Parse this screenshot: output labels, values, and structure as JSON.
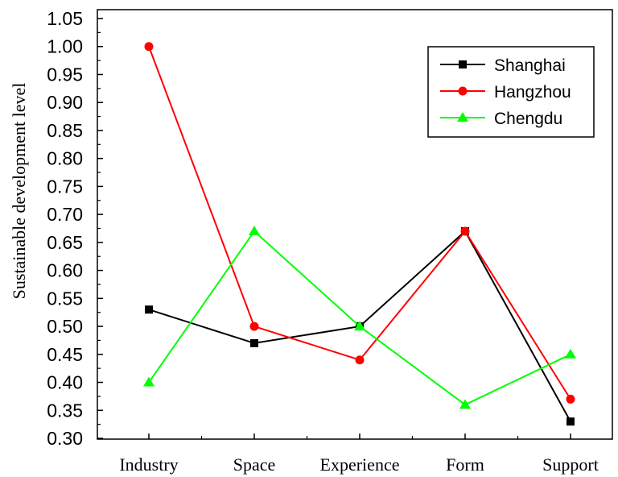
{
  "chart_data": {
    "type": "line",
    "title": "",
    "xlabel": "",
    "ylabel": "Sustainable development level",
    "categories": [
      "Industry",
      "Space",
      "Experience",
      "Form",
      "Support"
    ],
    "ylim": [
      0.3,
      1.05
    ],
    "yticks": [
      "0.30",
      "0.35",
      "0.40",
      "0.45",
      "0.50",
      "0.55",
      "0.60",
      "0.65",
      "0.70",
      "0.75",
      "0.80",
      "0.85",
      "0.90",
      "0.95",
      "1.00",
      "1.05"
    ],
    "grid": false,
    "legend_position": "top-right",
    "series": [
      {
        "name": "Shanghai",
        "values": [
          0.53,
          0.47,
          0.5,
          0.67,
          0.33
        ],
        "color": "#000000",
        "marker": "square"
      },
      {
        "name": "Hangzhou",
        "values": [
          1.0,
          0.5,
          0.44,
          0.67,
          0.37
        ],
        "color": "#ff0000",
        "marker": "circle"
      },
      {
        "name": "Chengdu",
        "values": [
          0.4,
          0.67,
          0.5,
          0.36,
          0.45
        ],
        "color": "#00ff00",
        "marker": "triangle"
      }
    ]
  }
}
